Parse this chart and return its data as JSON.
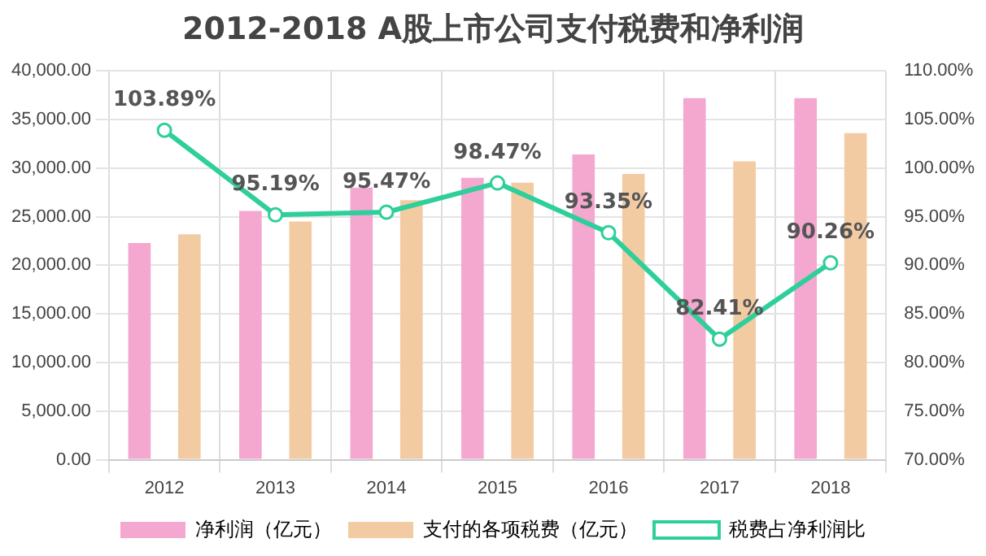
{
  "chart_data": {
    "type": "bar",
    "title": "2012-2018 A股上市公司支付税费和净利润",
    "categories": [
      "2012",
      "2013",
      "2014",
      "2015",
      "2016",
      "2017",
      "2018"
    ],
    "series": [
      {
        "name": "净利润（亿元）",
        "color": "#f4a7cf",
        "values": [
          22300,
          25600,
          28000,
          29000,
          31400,
          37200,
          37200
        ]
      },
      {
        "name": "支付的各项税费（亿元）",
        "color": "#f3cba3",
        "values": [
          23200,
          24500,
          26700,
          28500,
          29400,
          30700,
          33600
        ]
      },
      {
        "name": "税费占净利润比",
        "type": "line",
        "axis": "y2",
        "color": "#2ecf9a",
        "marker": "circle",
        "values": [
          103.89,
          95.19,
          95.47,
          98.47,
          93.35,
          82.41,
          90.26
        ],
        "value_labels": [
          "103.89%",
          "95.19%",
          "95.47%",
          "98.47%",
          "93.35%",
          "82.41%",
          "90.26%"
        ]
      }
    ],
    "ylim": [
      0,
      40000
    ],
    "yticks": [
      {
        "value": 0,
        "label": "0.00"
      },
      {
        "value": 5000,
        "label": "5,000.00"
      },
      {
        "value": 10000,
        "label": "10,000.00"
      },
      {
        "value": 15000,
        "label": "15,000.00"
      },
      {
        "value": 20000,
        "label": "20,000.00"
      },
      {
        "value": 25000,
        "label": "25,000.00"
      },
      {
        "value": 30000,
        "label": "30,000.00"
      },
      {
        "value": 35000,
        "label": "35,000.00"
      },
      {
        "value": 40000,
        "label": "40,000.00"
      }
    ],
    "y2lim": [
      70,
      110
    ],
    "y2ticks": [
      {
        "value": 70,
        "label": "70.00%"
      },
      {
        "value": 75,
        "label": "75.00%"
      },
      {
        "value": 80,
        "label": "80.00%"
      },
      {
        "value": 85,
        "label": "85.00%"
      },
      {
        "value": 90,
        "label": "90.00%"
      },
      {
        "value": 95,
        "label": "95.00%"
      },
      {
        "value": 100,
        "label": "100.00%"
      },
      {
        "value": 105,
        "label": "105.00%"
      },
      {
        "value": 110,
        "label": "110.00%"
      }
    ],
    "grid": true,
    "legend": "bottom"
  }
}
